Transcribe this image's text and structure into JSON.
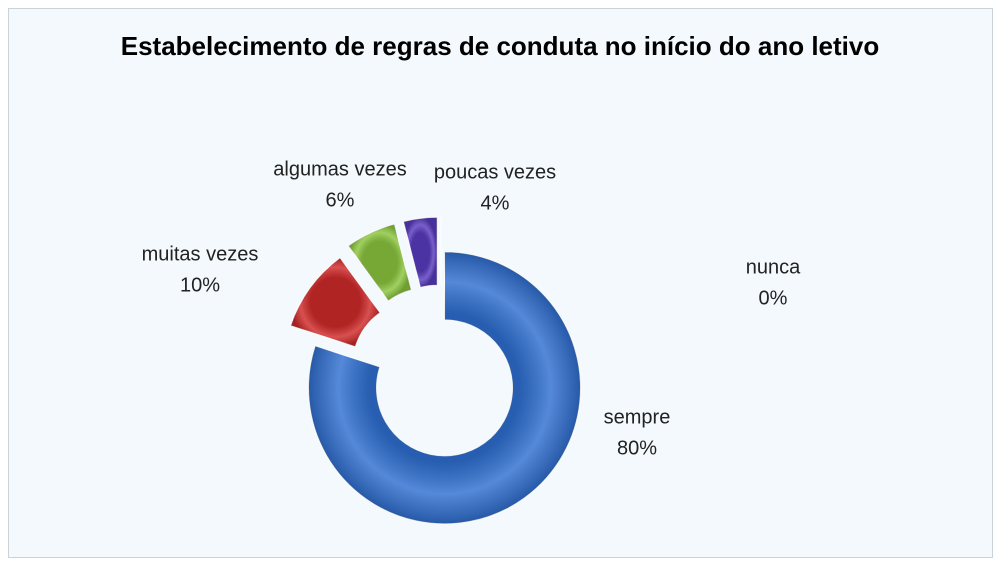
{
  "chart_data": {
    "type": "donut",
    "title": "Estabelecimento de regras de conduta no início do ano letivo",
    "categories": [
      "sempre",
      "muitas vezes",
      "algumas vezes",
      "poucas vezes",
      "nunca"
    ],
    "values": [
      80,
      10,
      6,
      4,
      0
    ],
    "value_labels": [
      "80%",
      "10%",
      "6%",
      "4%",
      "0%"
    ],
    "colors": [
      "#2f6fd0",
      "#d02a2a",
      "#8cc63f",
      "#5a3cc0",
      "#3fa9c9"
    ]
  }
}
